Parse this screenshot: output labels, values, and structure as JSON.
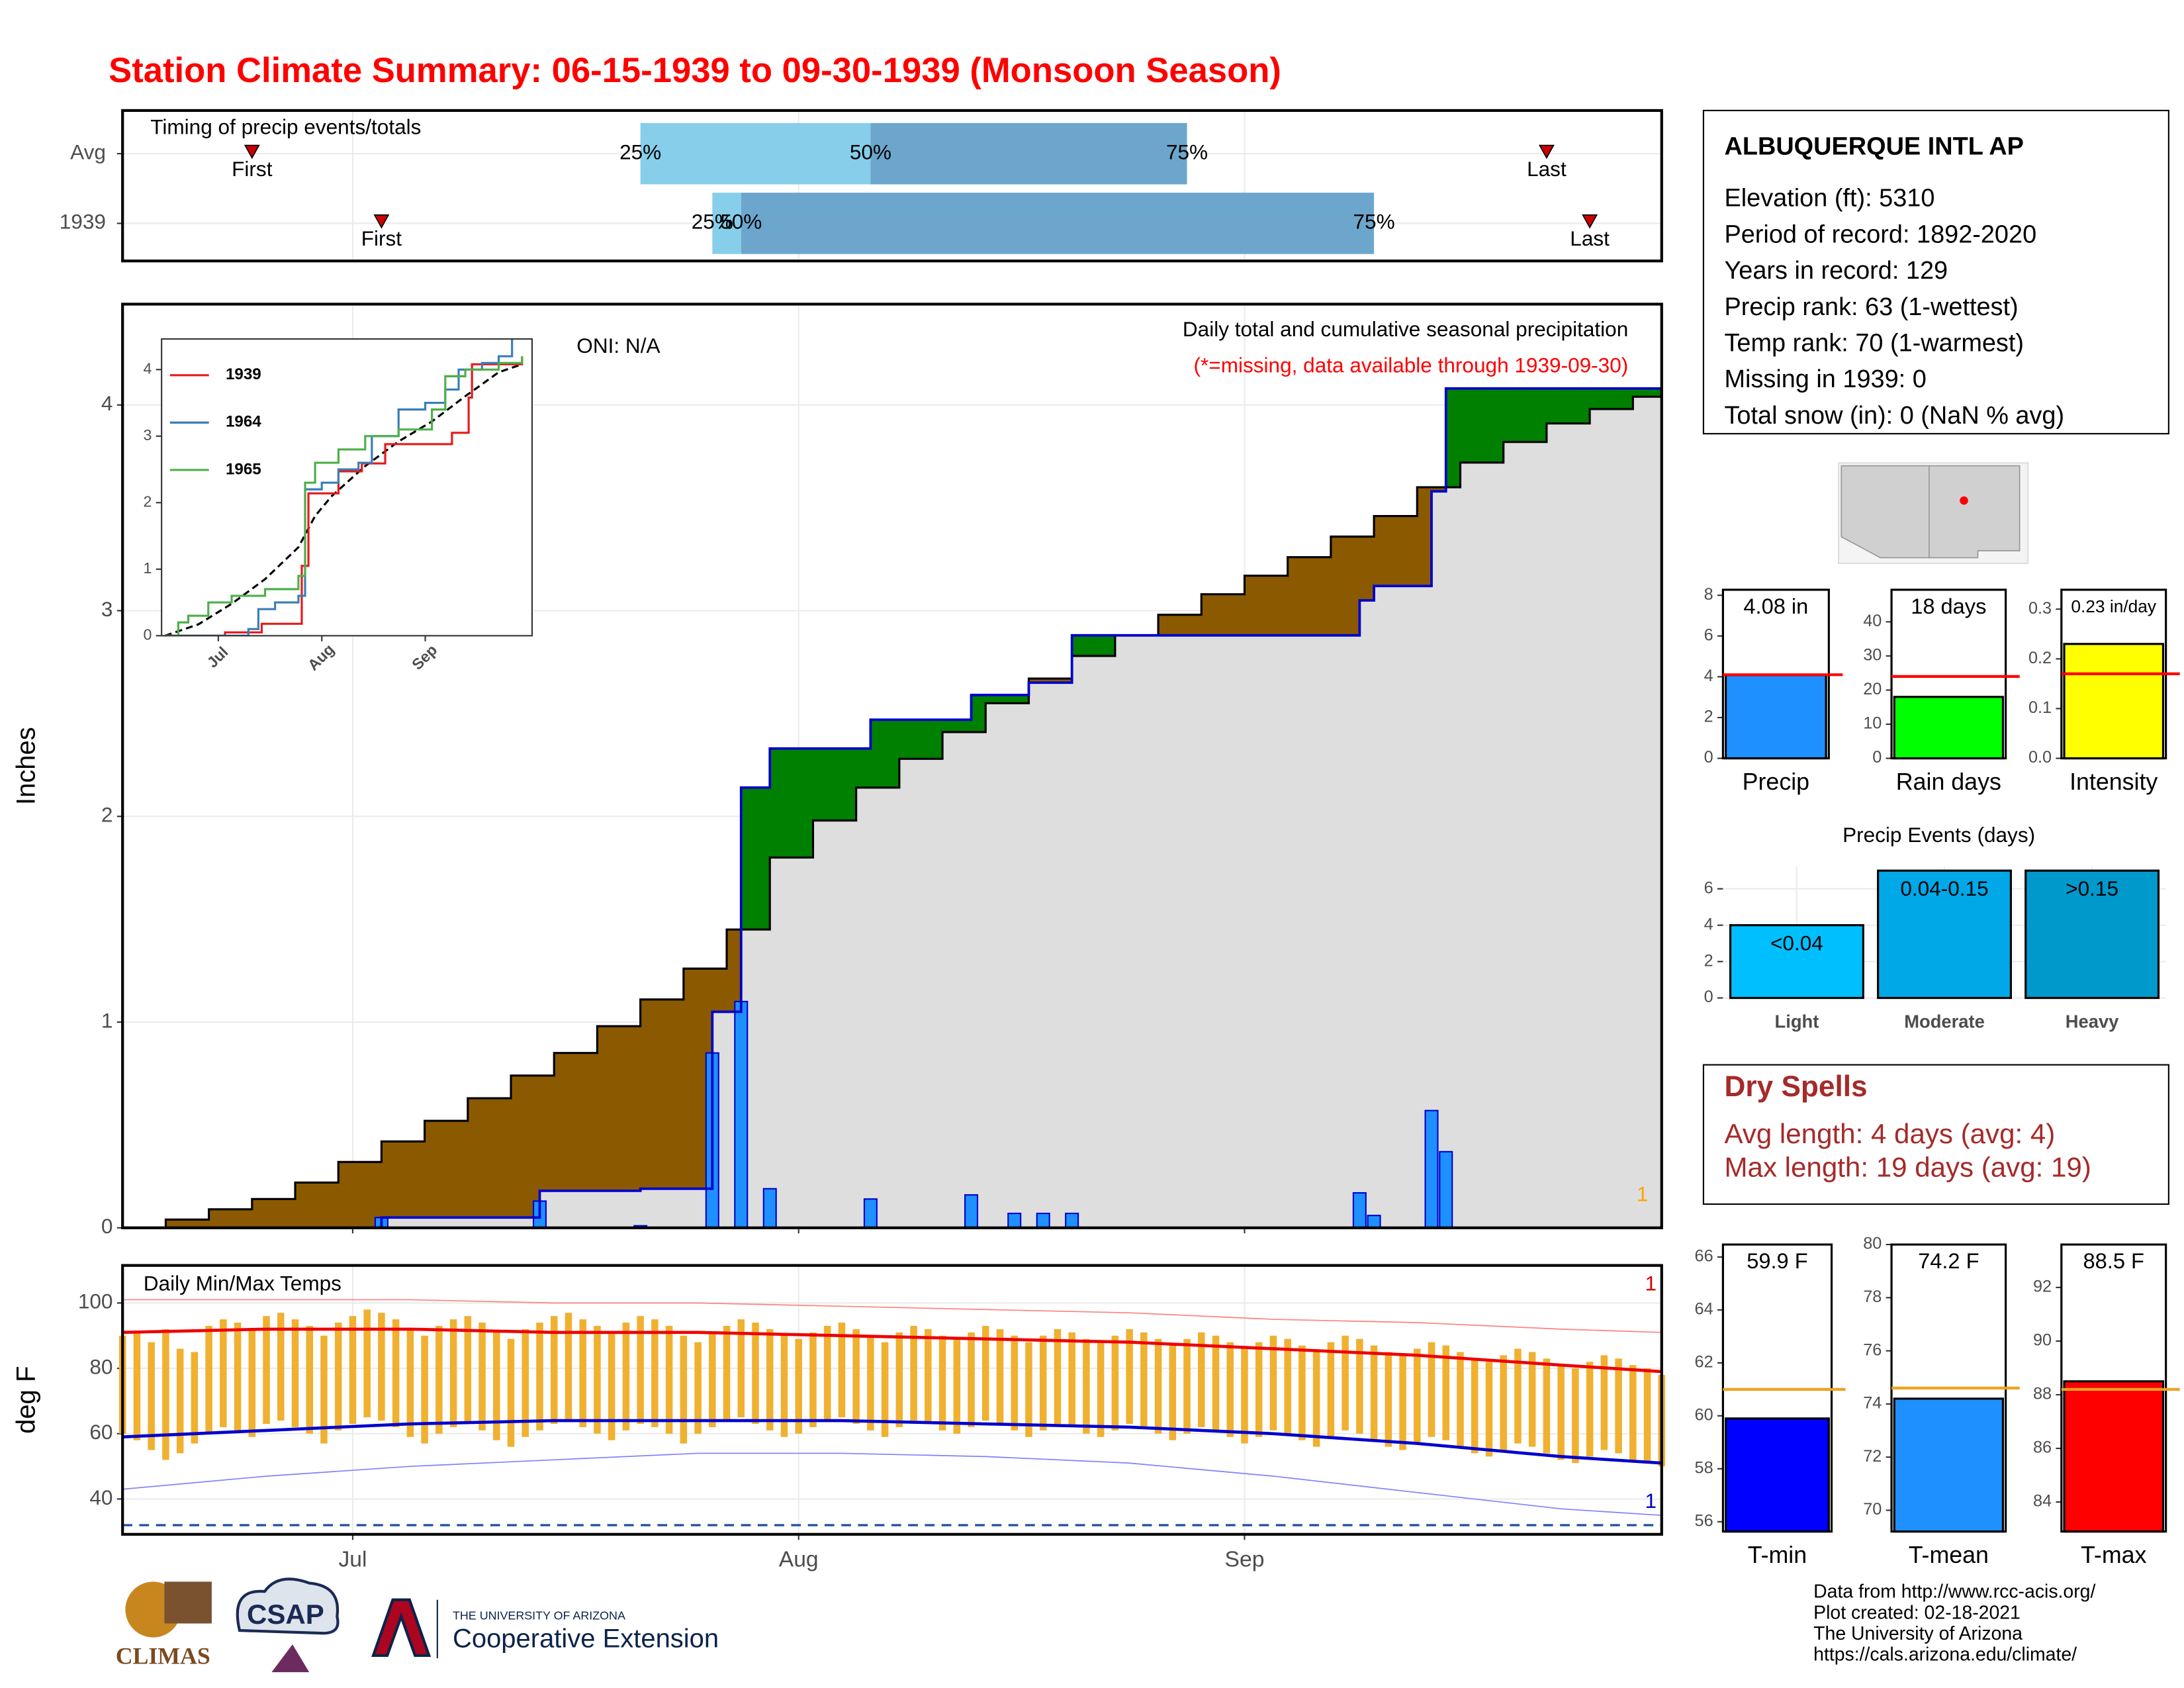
{
  "title": "Station Climate Summary: 06-15-1939 to 09-30-1939 (Monsoon Season)",
  "station": {
    "name": "ALBUQUERQUE INTL AP",
    "lines": [
      "Elevation (ft): 5310",
      "Period of record: 1892-2020",
      "Years in record: 129",
      "Precip rank: 63 (1-wettest)",
      "Temp rank: 70 (1-warmest)",
      "Missing in 1939: 0",
      "Total snow (in): 0 (NaN % avg)"
    ]
  },
  "dry_spells": {
    "title": "Dry Spells",
    "lines": [
      "Avg length: 4 days (avg: 4)",
      "Max length: 19 days (avg: 19)"
    ]
  },
  "credits": [
    "Data from http://www.rcc-acis.org/",
    "Plot created: 02-18-2021",
    "The University of Arizona",
    "https://cals.arizona.edu/climate/"
  ],
  "logos": {
    "climas": "CLIMAS",
    "csap": "CSAP",
    "university": "THE UNIVERSITY OF ARIZONA",
    "extension": "Cooperative Extension"
  },
  "chart_data": [
    {
      "type": "timing",
      "title": "Timing of precip events/totals",
      "xlim": [
        0,
        107
      ],
      "xgrid": [
        16,
        47,
        78
      ],
      "categories": [
        "Avg",
        "1939"
      ],
      "marker_labels": {
        "first": "First",
        "last": "Last",
        "q25": "25%",
        "q50": "50%",
        "q75": "75%"
      },
      "first": [
        9,
        18
      ],
      "q25": [
        36,
        41
      ],
      "q50": [
        52,
        43
      ],
      "q75": [
        74,
        87
      ],
      "last": [
        99,
        102
      ],
      "colors": {
        "early": "#87ceeb",
        "late": "#6ca6cd",
        "marker": "#cc0000"
      }
    },
    {
      "type": "cumulative",
      "title": "Daily total and cumulative seasonal precipitation",
      "subtitle": "(*=missing, data available through 1939-09-30)",
      "annotation": "ONI: N/A",
      "corner_note": "1",
      "ylabel": "Inches",
      "xlim": [
        0,
        107
      ],
      "ylim": [
        0,
        4.49
      ],
      "yticks": [
        0,
        1,
        2,
        3,
        4
      ],
      "xgrid": [
        16,
        47,
        78
      ],
      "grid": true,
      "daily": {
        "x": [
          18,
          29,
          36,
          41,
          43,
          45,
          52,
          59,
          62,
          64,
          66,
          86,
          87,
          91,
          92
        ],
        "values": [
          0.05,
          0.13,
          0.01,
          0.85,
          1.1,
          0.19,
          0.14,
          0.16,
          0.07,
          0.07,
          0.07,
          0.17,
          0.06,
          0.57,
          0.37
        ],
        "color": "#1e90ff"
      },
      "observed": {
        "x": [
          0,
          18,
          29,
          36,
          41,
          43,
          45,
          52,
          59,
          63,
          66,
          86,
          87,
          91,
          92
        ],
        "values": [
          0,
          0.05,
          0.18,
          0.19,
          1.05,
          2.14,
          2.33,
          2.47,
          2.59,
          2.65,
          2.88,
          3.05,
          3.12,
          3.58,
          4.08
        ],
        "color": "#0000cd"
      },
      "average": {
        "x": [
          0,
          3,
          6,
          9,
          12,
          15,
          18,
          21,
          24,
          27,
          30,
          33,
          36,
          39,
          42,
          45,
          48,
          51,
          54,
          57,
          60,
          63,
          66,
          69,
          72,
          75,
          78,
          81,
          84,
          87,
          90,
          93,
          96,
          99,
          102,
          105,
          107
        ],
        "values": [
          0,
          0.04,
          0.09,
          0.14,
          0.22,
          0.32,
          0.42,
          0.52,
          0.63,
          0.74,
          0.85,
          0.98,
          1.11,
          1.26,
          1.45,
          1.8,
          1.98,
          2.14,
          2.28,
          2.41,
          2.55,
          2.67,
          2.78,
          2.88,
          2.98,
          3.08,
          3.17,
          3.26,
          3.36,
          3.46,
          3.6,
          3.72,
          3.82,
          3.91,
          3.98,
          4.04,
          4.08
        ],
        "color": "#000000"
      },
      "fill_colors": {
        "above": "#008000",
        "below": "#8b5a00",
        "base": "#dedede"
      }
    },
    {
      "type": "line",
      "xlim": [
        -1,
        110
      ],
      "ylim": [
        0,
        4.46
      ],
      "yticks": [
        0,
        1,
        2,
        3,
        4
      ],
      "xticks": [
        {
          "value": 16,
          "label": "Jul"
        },
        {
          "value": 47,
          "label": "Aug"
        },
        {
          "value": 78,
          "label": "Sep"
        }
      ],
      "series": [
        {
          "name": "1939",
          "color": "#e41a1c",
          "x": [
            0,
            18,
            29,
            41,
            43,
            52,
            59,
            66,
            86,
            91,
            92,
            107
          ],
          "values": [
            0,
            0.05,
            0.18,
            1.05,
            2.14,
            2.47,
            2.59,
            2.88,
            3.05,
            3.58,
            4.08,
            4.2
          ]
        },
        {
          "name": "1964",
          "color": "#377eb8",
          "x": [
            0,
            25,
            28,
            33,
            40,
            42,
            47,
            52,
            58,
            62,
            70,
            78,
            84,
            88,
            95,
            100,
            104,
            107
          ],
          "values": [
            0,
            0.1,
            0.4,
            0.5,
            0.6,
            2.2,
            2.3,
            2.5,
            2.6,
            3.0,
            3.4,
            3.5,
            3.7,
            4.0,
            4.1,
            4.2,
            4.5,
            4.5
          ]
        },
        {
          "name": "1965",
          "color": "#4daf4a",
          "x": [
            0,
            4,
            7,
            13,
            20,
            30,
            40,
            42,
            45,
            52,
            60,
            70,
            80,
            84,
            90,
            100,
            107
          ],
          "values": [
            0,
            0.2,
            0.3,
            0.5,
            0.6,
            0.7,
            0.9,
            2.3,
            2.6,
            2.8,
            3.0,
            3.1,
            3.4,
            3.9,
            4.0,
            4.1,
            4.2
          ]
        }
      ],
      "average": {
        "x": [
          0,
          10,
          20,
          30,
          40,
          45,
          50,
          60,
          70,
          80,
          90,
          100,
          107
        ],
        "values": [
          0,
          0.17,
          0.48,
          0.85,
          1.33,
          1.8,
          2.1,
          2.55,
          2.92,
          3.22,
          3.6,
          3.96,
          4.08
        ]
      }
    },
    {
      "type": "temperature",
      "title": "Daily Min/Max Temps",
      "ylabel": "deg F",
      "xlim": [
        0,
        107
      ],
      "ylim": [
        29.2,
        111.5
      ],
      "yticks": [
        40,
        60,
        80,
        100
      ],
      "xticks": [
        {
          "value": 16,
          "label": "Jul"
        },
        {
          "value": 47,
          "label": "Aug"
        },
        {
          "value": 78,
          "label": "Sep"
        }
      ],
      "x": [
        0,
        1,
        2,
        3,
        4,
        5,
        6,
        7,
        8,
        9,
        10,
        11,
        12,
        13,
        14,
        15,
        16,
        17,
        18,
        19,
        20,
        21,
        22,
        23,
        24,
        25,
        26,
        27,
        28,
        29,
        30,
        31,
        32,
        33,
        34,
        35,
        36,
        37,
        38,
        39,
        40,
        41,
        42,
        43,
        44,
        45,
        46,
        47,
        48,
        49,
        50,
        51,
        52,
        53,
        54,
        55,
        56,
        57,
        58,
        59,
        60,
        61,
        62,
        63,
        64,
        65,
        66,
        67,
        68,
        69,
        70,
        71,
        72,
        73,
        74,
        75,
        76,
        77,
        78,
        79,
        80,
        81,
        82,
        83,
        84,
        85,
        86,
        87,
        88,
        89,
        90,
        91,
        92,
        93,
        94,
        95,
        96,
        97,
        98,
        99,
        100,
        101,
        102,
        103,
        104,
        105,
        106,
        107
      ],
      "tmax": [
        90,
        91,
        88,
        92,
        86,
        85,
        93,
        95,
        94,
        92,
        96,
        97,
        95,
        93,
        90,
        94,
        96,
        98,
        97,
        95,
        92,
        90,
        93,
        95,
        96,
        94,
        91,
        89,
        92,
        94,
        96,
        97,
        95,
        93,
        91,
        94,
        96,
        95,
        93,
        90,
        88,
        91,
        93,
        95,
        94,
        92,
        90,
        89,
        91,
        93,
        94,
        92,
        90,
        88,
        91,
        93,
        92,
        90,
        89,
        91,
        93,
        92,
        90,
        88,
        90,
        92,
        91,
        89,
        88,
        90,
        92,
        91,
        89,
        87,
        89,
        91,
        90,
        88,
        86,
        88,
        90,
        89,
        87,
        85,
        88,
        90,
        89,
        87,
        85,
        84,
        86,
        88,
        87,
        85,
        83,
        82,
        84,
        86,
        85,
        83,
        81,
        80,
        82,
        84,
        83,
        81,
        80,
        78
      ],
      "tmin": [
        60,
        58,
        55,
        52,
        54,
        57,
        60,
        62,
        61,
        59,
        63,
        64,
        62,
        60,
        57,
        61,
        63,
        65,
        64,
        62,
        59,
        57,
        60,
        62,
        63,
        61,
        58,
        56,
        59,
        61,
        63,
        64,
        62,
        60,
        58,
        61,
        63,
        62,
        60,
        57,
        60,
        62,
        64,
        65,
        63,
        61,
        59,
        60,
        62,
        64,
        65,
        63,
        61,
        59,
        62,
        64,
        63,
        61,
        60,
        62,
        64,
        63,
        61,
        59,
        61,
        63,
        62,
        60,
        59,
        61,
        63,
        62,
        60,
        58,
        60,
        62,
        61,
        59,
        57,
        59,
        61,
        60,
        58,
        56,
        59,
        61,
        60,
        58,
        56,
        55,
        57,
        59,
        58,
        56,
        54,
        53,
        55,
        57,
        56,
        54,
        52,
        51,
        53,
        55,
        54,
        52,
        51,
        50
      ],
      "normals": {
        "x": [
          0,
          10,
          20,
          30,
          40,
          50,
          60,
          70,
          80,
          90,
          100,
          107
        ],
        "avg_max": [
          91,
          92,
          92,
          91,
          91,
          90,
          89,
          88,
          86,
          84,
          81,
          79
        ],
        "avg_min": [
          59,
          61,
          63,
          64,
          64,
          64,
          63,
          62,
          60,
          57,
          53,
          51
        ],
        "record_max": [
          101,
          101,
          101,
          100,
          100,
          99,
          98,
          97,
          95,
          94,
          92,
          91
        ],
        "record_min": [
          43,
          47,
          50,
          52,
          54,
          54,
          53,
          51,
          47,
          42,
          37,
          35
        ]
      },
      "freeze": 32,
      "colors": {
        "bar": "#f0b030",
        "avg_max": "#ee0000",
        "avg_min": "#0000cd",
        "record_max": "#ff8080",
        "record_min": "#8080ff",
        "freeze": "#1f4e9a"
      },
      "annotations": [
        {
          "text": "1",
          "color": "#e00000"
        },
        {
          "text": "1",
          "color": "#0000cd"
        }
      ]
    },
    {
      "type": "summary_bar",
      "category": "Precip",
      "value": 4.08,
      "value_label": "4.08 in",
      "avg": 4.1,
      "ylim": [
        0,
        8.27
      ],
      "yticks": [
        0,
        2,
        4,
        6,
        8
      ],
      "color": "#1e90ff",
      "avg_color": "#ff0000"
    },
    {
      "type": "summary_bar",
      "category": "Rain days",
      "value": 18,
      "value_label": "18 days",
      "avg": 24,
      "ylim": [
        0,
        49.4
      ],
      "yticks": [
        0,
        10,
        20,
        30,
        40
      ],
      "color": "#00ff00",
      "avg_color": "#ff0000"
    },
    {
      "type": "summary_bar",
      "category": "Intensity",
      "value": 0.23,
      "value_label": "0.23 in/day",
      "avg": 0.17,
      "ylim": [
        0,
        0.339
      ],
      "yticks": [
        {
          "value": 0,
          "label": "0.0"
        },
        0.1,
        0.2,
        0.3
      ],
      "color": "#ffff00",
      "avg_color": "#ff0000"
    },
    {
      "type": "bar",
      "title": "Precip Events (days)",
      "categories": [
        "Light",
        "Moderate",
        "Heavy"
      ],
      "values": [
        4,
        7,
        7
      ],
      "class_labels": [
        "<0.04",
        "0.04-0.15",
        ">0.15"
      ],
      "colors": [
        "#00bfff",
        "#00a8e8",
        "#0099cc"
      ],
      "ylim": [
        0,
        7.2
      ],
      "yticks": [
        0,
        2,
        4,
        6
      ],
      "grid": true
    },
    {
      "type": "summary_bar",
      "category": "T-min",
      "value": 59.9,
      "value_label": "59.9 F",
      "avg": 61,
      "ylim": [
        55.63,
        66.47
      ],
      "yticks": [
        56,
        58,
        60,
        62,
        64,
        66
      ],
      "color": "#0000ff",
      "avg_color": "#f0a020"
    },
    {
      "type": "summary_bar",
      "category": "T-mean",
      "value": 74.2,
      "value_label": "74.2 F",
      "avg": 74.6,
      "ylim": [
        69.2,
        80
      ],
      "yticks": [
        70,
        72,
        74,
        76,
        78,
        80
      ],
      "color": "#1e90ff",
      "avg_color": "#f0a020"
    },
    {
      "type": "summary_bar",
      "category": "T-max",
      "value": 88.5,
      "value_label": "88.5 F",
      "avg": 88.2,
      "ylim": [
        82.9,
        93.6
      ],
      "yticks": [
        84,
        86,
        88,
        90,
        92
      ],
      "color": "#ff0000",
      "avg_color": "#f0a020"
    }
  ]
}
